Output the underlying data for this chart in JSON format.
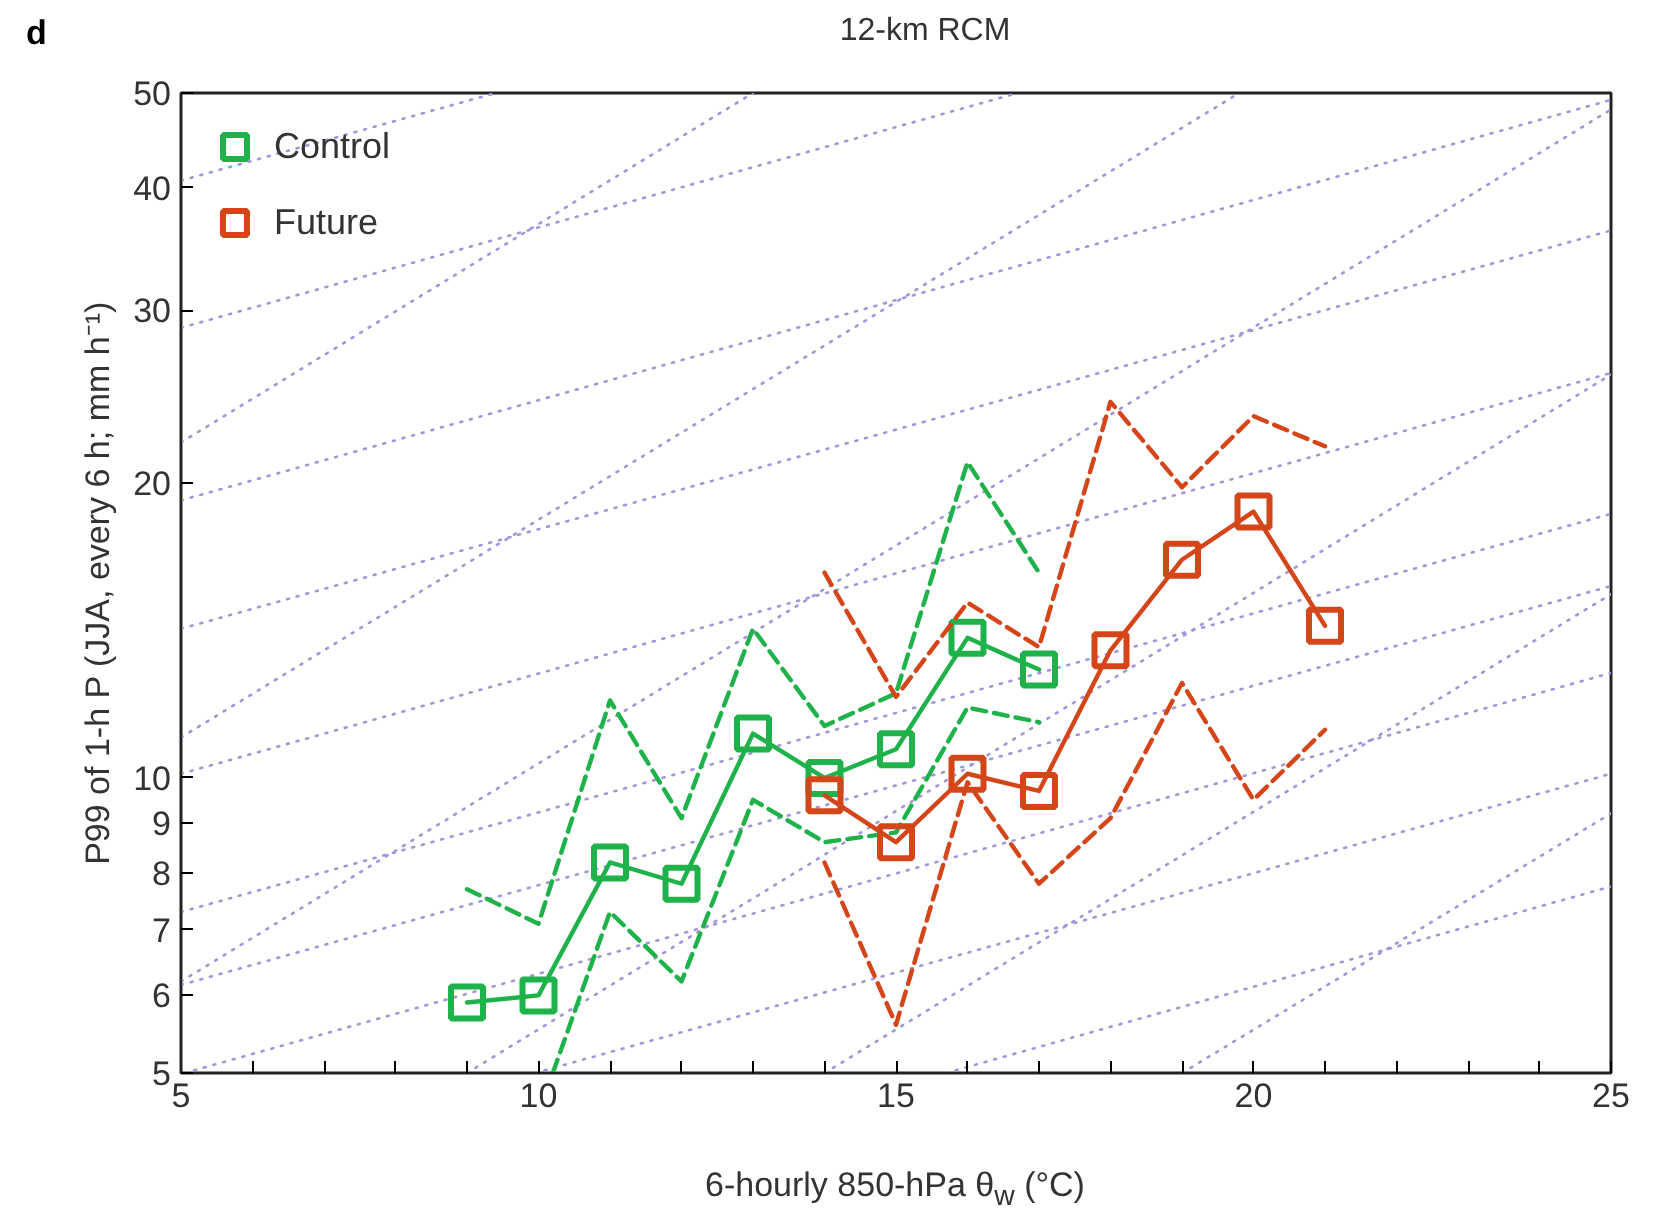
{
  "chart_data": {
    "type": "line",
    "title": "12-km RCM",
    "annotations": [
      "d"
    ],
    "xlabel": "6-hourly 850-hPa θ$_{w}$ (°C)",
    "ylabel": "P99 of 1-h P (JJA, every 6 h; mm h⁻¹)",
    "log": "y",
    "grid": false,
    "legend": "top left",
    "marker": "none",
    "line_style": "solid",
    "xlim": [
      5,
      25
    ],
    "ylim": [
      5,
      50
    ],
    "xticks": [
      5,
      {
        "value": 6,
        "label": null
      },
      {
        "value": 7,
        "label": null
      },
      {
        "value": 8,
        "label": null
      },
      {
        "value": 9,
        "label": null
      },
      10,
      {
        "value": 11,
        "label": null
      },
      {
        "value": 12,
        "label": null
      },
      {
        "value": 13,
        "label": null
      },
      {
        "value": 14,
        "label": null
      },
      15,
      {
        "value": 16,
        "label": null
      },
      {
        "value": 17,
        "label": null
      },
      {
        "value": 18,
        "label": null
      },
      {
        "value": 19,
        "label": null
      },
      20,
      {
        "value": 21,
        "label": null
      },
      {
        "value": 22,
        "label": null
      },
      {
        "value": 23,
        "label": null
      },
      {
        "value": 24,
        "label": null
      },
      25
    ],
    "yticks": [
      5,
      6,
      7,
      8,
      9,
      10,
      20,
      30,
      40,
      50
    ],
    "series": [
      {
        "name": "Control",
        "color": "#1fb24a",
        "marker": "square",
        "x": [
          9,
          10,
          11,
          12,
          13,
          14,
          15,
          16,
          17
        ],
        "values": [
          5.9,
          6.0,
          8.2,
          7.8,
          11.1,
          10.0,
          10.7,
          13.9,
          12.9
        ]
      },
      {
        "color": "#1fb24a",
        "line_style": "dashed",
        "x": [
          9,
          10,
          11,
          12,
          13,
          14,
          15,
          16,
          17
        ],
        "values": [
          7.7,
          7.1,
          12.0,
          9.1,
          14.2,
          11.3,
          12.2,
          21.0,
          16.2
        ]
      },
      {
        "color": "#1fb24a",
        "line_style": "dashed",
        "x": [
          10.2,
          11,
          12,
          13,
          14,
          15,
          16,
          17
        ],
        "values": [
          5,
          7.3,
          6.2,
          9.5,
          8.6,
          8.8,
          11.8,
          11.4
        ]
      },
      {
        "name": "Future",
        "color": "#d4451a",
        "marker": "square",
        "x": [
          14,
          15,
          16,
          17,
          18,
          19,
          20,
          21
        ],
        "values": [
          9.6,
          8.6,
          10.1,
          9.7,
          13.5,
          16.7,
          18.7,
          14.3
        ]
      },
      {
        "color": "#d4451a",
        "line_style": "dashed",
        "x": [
          14,
          15,
          16,
          17,
          18,
          19,
          20,
          21
        ],
        "values": [
          16.2,
          12.1,
          15.1,
          13.6,
          24.2,
          19.8,
          23.4,
          21.8
        ]
      },
      {
        "color": "#d4451a",
        "line_style": "dashed",
        "x": [
          14,
          15,
          16,
          17,
          18,
          19,
          20,
          21
        ],
        "values": [
          8.2,
          5.6,
          9.9,
          7.8,
          9.1,
          12.5,
          9.5,
          11.2
        ]
      },
      {
        "color": "#a395d8",
        "line_style": "dotted",
        "x": [
          5,
          9.4
        ],
        "values": [
          40.7,
          50
        ]
      },
      {
        "color": "#a395d8",
        "line_style": "dotted",
        "x": [
          5,
          16.7
        ],
        "values": [
          28.8,
          50
        ]
      },
      {
        "color": "#a395d8",
        "line_style": "dotted",
        "x": [
          5,
          25
        ],
        "values": [
          19.2,
          49.2
        ]
      },
      {
        "color": "#a395d8",
        "line_style": "dotted",
        "x": [
          5,
          25
        ],
        "values": [
          14.2,
          36.2
        ]
      },
      {
        "color": "#a395d8",
        "line_style": "dotted",
        "x": [
          5,
          25
        ],
        "values": [
          10.1,
          25.9
        ]
      },
      {
        "color": "#a395d8",
        "line_style": "dotted",
        "x": [
          5,
          25
        ],
        "values": [
          7.3,
          18.6
        ]
      },
      {
        "color": "#a395d8",
        "line_style": "dotted",
        "x": [
          5,
          25
        ],
        "values": [
          6.15,
          15.7
        ]
      },
      {
        "color": "#a395d8",
        "line_style": "dotted",
        "x": [
          5.05,
          25
        ],
        "values": [
          5,
          12.8
        ]
      },
      {
        "color": "#a395d8",
        "line_style": "dotted",
        "x": [
          9.95,
          25
        ],
        "values": [
          5,
          10.1
        ]
      },
      {
        "color": "#a395d8",
        "line_style": "dotted",
        "x": [
          15.7,
          25
        ],
        "values": [
          5,
          7.75
        ]
      },
      {
        "color": "#a395d8",
        "line_style": "dotted",
        "x": [
          5,
          13
        ],
        "values": [
          22,
          50
        ]
      },
      {
        "color": "#a395d8",
        "line_style": "dotted",
        "x": [
          5,
          19.8
        ],
        "values": [
          11,
          50
        ]
      },
      {
        "color": "#a395d8",
        "line_style": "dotted",
        "x": [
          5,
          25
        ],
        "values": [
          6.2,
          48.1
        ]
      },
      {
        "color": "#a395d8",
        "line_style": "dotted",
        "x": [
          9,
          25
        ],
        "values": [
          5,
          25.8
        ]
      },
      {
        "color": "#a395d8",
        "line_style": "dotted",
        "x": [
          14,
          25
        ],
        "values": [
          5,
          15.4
        ]
      },
      {
        "color": "#a395d8",
        "line_style": "dotted",
        "x": [
          19,
          25
        ],
        "values": [
          5,
          9.2
        ]
      }
    ]
  }
}
